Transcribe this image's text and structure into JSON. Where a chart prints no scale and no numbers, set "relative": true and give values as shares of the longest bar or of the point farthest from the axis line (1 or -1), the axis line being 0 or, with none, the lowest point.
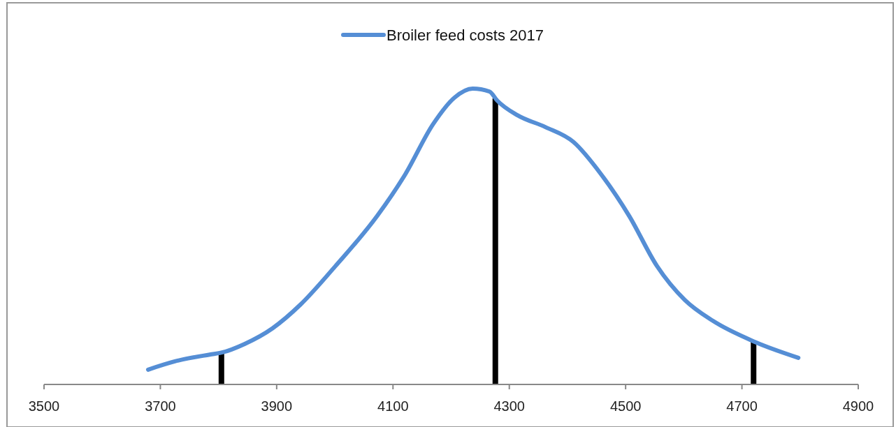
{
  "chart_data": {
    "type": "line",
    "relative": true,
    "legend": "top",
    "line_style": "solid",
    "marker": "none",
    "xlim": [
      3500,
      4900
    ],
    "xticks": [
      3500,
      3700,
      3900,
      4100,
      4300,
      4500,
      4700,
      4900
    ],
    "series": [
      {
        "name": "Broiler feed costs 2017",
        "color": "#558ed5",
        "x": [
          3679,
          3725,
          3785,
          3806,
          3845,
          3893,
          3941,
          4001,
          4073,
          4121,
          4169,
          4206,
          4237,
          4266,
          4279,
          4314,
          4362,
          4410,
          4458,
          4506,
          4554,
          4602,
          4650,
          4722,
          4797
        ],
        "values": [
          0.05,
          0.078,
          0.101,
          0.108,
          0.137,
          0.19,
          0.27,
          0.4,
          0.57,
          0.71,
          0.88,
          0.97,
          1.0,
          0.99,
          0.96,
          0.91,
          0.87,
          0.82,
          0.71,
          0.57,
          0.4,
          0.285,
          0.215,
          0.144,
          0.09
        ]
      }
    ],
    "ref_lines": [
      {
        "axis": "x",
        "value": 3805,
        "color": "#000000"
      },
      {
        "axis": "x",
        "value": 4276,
        "color": "#000000"
      },
      {
        "axis": "x",
        "value": 4720,
        "color": "#000000"
      }
    ]
  }
}
